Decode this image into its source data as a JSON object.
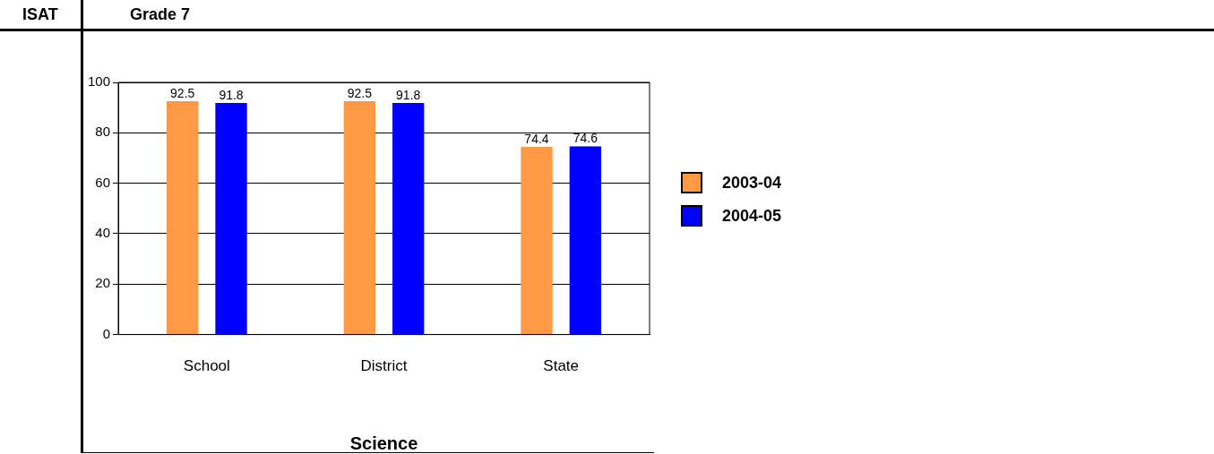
{
  "chart_data": {
    "type": "bar",
    "title": "Grade 7",
    "subtitle": "ISAT",
    "xlabel": "Science",
    "categories": [
      "School",
      "District",
      "State"
    ],
    "series": [
      {
        "name": "2003-04",
        "color": "#ff9944",
        "values": [
          92.5,
          92.5,
          74.4
        ]
      },
      {
        "name": "2004-05",
        "color": "#0000ff",
        "values": [
          91.8,
          91.8,
          74.6
        ]
      }
    ],
    "ylim": [
      0,
      100
    ],
    "yticks": [
      0,
      20,
      40,
      60,
      80,
      100
    ],
    "grid": "y",
    "legend": "right",
    "data_labels": true
  }
}
